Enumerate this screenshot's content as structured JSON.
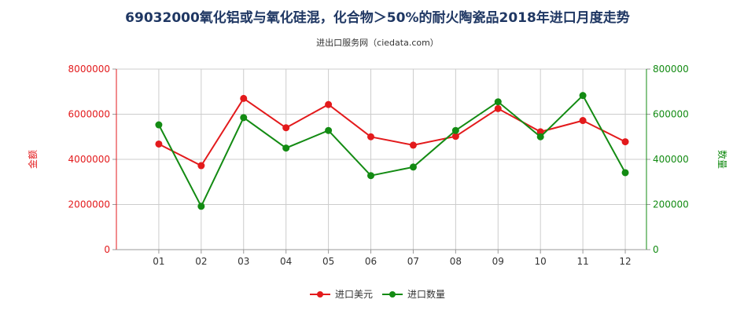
{
  "title": "69032000氧化铝或与氧化硅混，化合物＞50%的耐火陶瓷品2018年进口月度走势",
  "subtitle": "进出口服务网（ciedata.com）",
  "colors": {
    "series1": "#e31a1c",
    "series2": "#138b13",
    "grid": "#cccccc",
    "axis": "#999999"
  },
  "chart_data": {
    "type": "line",
    "categories": [
      "01",
      "02",
      "03",
      "04",
      "05",
      "06",
      "07",
      "08",
      "09",
      "10",
      "11",
      "12"
    ],
    "series": [
      {
        "name": "进口美元",
        "axis": "left",
        "values": [
          4680000,
          3720000,
          6700000,
          5400000,
          6430000,
          5000000,
          4630000,
          5020000,
          6250000,
          5220000,
          5720000,
          4780000
        ]
      },
      {
        "name": "进口数量",
        "axis": "right",
        "values": [
          553000,
          192000,
          585000,
          450000,
          528000,
          328000,
          366000,
          528000,
          655000,
          500000,
          683000,
          341000
        ]
      }
    ],
    "ylabel_left": "金额",
    "ylabel_right": "数量",
    "ylim_left": [
      0,
      8000000
    ],
    "ylim_right": [
      0,
      800000
    ],
    "yticks_left": [
      "0",
      "2000000",
      "4000000",
      "6000000",
      "8000000"
    ],
    "yticks_right": [
      "0",
      "200000",
      "400000",
      "600000",
      "800000"
    ],
    "grid": true,
    "legend": "bottom-center"
  }
}
